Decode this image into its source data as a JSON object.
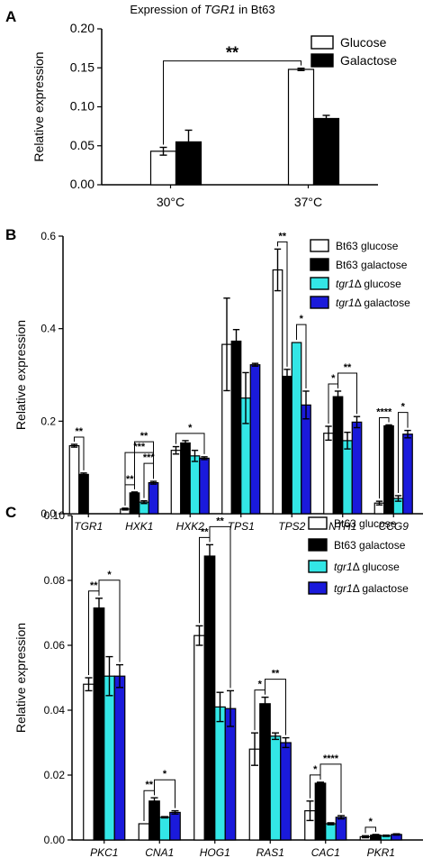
{
  "colors": {
    "glucose": "#ffffff",
    "galactose": "#000000",
    "tgr1_glucose": "#33e6e6",
    "tgr1_galactose": "#1a1adb"
  },
  "chart_data": [
    {
      "panel": "A",
      "type": "bar",
      "title": "Expression of TGR1 in Bt63",
      "title_parts": [
        "Expression of ",
        "TGR1",
        " in Bt63"
      ],
      "ylabel": "Relative expression",
      "ylim": [
        0,
        0.2
      ],
      "yticks": [
        "0.00",
        "0.05",
        "0.10",
        "0.15",
        "0.20"
      ],
      "categories": [
        "30°C",
        "37°C"
      ],
      "legend_position": "top-right",
      "series": [
        {
          "name": "Glucose",
          "color_key": "glucose",
          "values": [
            0.043,
            0.148
          ],
          "errors": [
            0.005,
            0.0015
          ]
        },
        {
          "name": "Galactose",
          "color_key": "galactose",
          "values": [
            0.055,
            0.085
          ],
          "errors": [
            0.015,
            0.004
          ]
        }
      ],
      "significance": [
        {
          "label": "**",
          "from": [
            0,
            0
          ],
          "to": [
            1,
            0
          ]
        }
      ]
    },
    {
      "panel": "B",
      "type": "bar",
      "ylabel": "Relative expression",
      "ylim": [
        0,
        0.6
      ],
      "yticks": [
        "0.0",
        "0.2",
        "0.4",
        "0.6"
      ],
      "categories": [
        "TGR1",
        "HXK1",
        "HXK2",
        "TPS1",
        "TPS2",
        "NTH1",
        "CCG9"
      ],
      "legend_position": "top-right",
      "series": [
        {
          "name": "Bt63 glucose",
          "color_key": "glucose",
          "values": [
            0.147,
            0.01,
            0.137,
            0.366,
            0.527,
            0.174,
            0.023
          ],
          "errors": [
            0.003,
            0.002,
            0.008,
            0.1,
            0.045,
            0.015,
            0.004
          ]
        },
        {
          "name": "Bt63 galactose",
          "color_key": "galactose",
          "values": [
            0.085,
            0.045,
            0.153,
            0.373,
            0.297,
            0.253,
            0.19
          ],
          "errors": [
            0.003,
            0.002,
            0.005,
            0.025,
            0.015,
            0.012,
            0.002
          ]
        },
        {
          "name": "tgr1Δ glucose",
          "name_parts": [
            "tgr1",
            "Δ glucose"
          ],
          "color_key": "tgr1_glucose",
          "values": [
            null,
            0.025,
            0.125,
            0.25,
            0.37,
            0.158,
            0.033
          ],
          "errors": [
            0,
            0.003,
            0.012,
            0.055,
            0.0,
            0.018,
            0.006
          ]
        },
        {
          "name": "tgr1Δ galactose",
          "name_parts": [
            "tgr1",
            "Δ galactose"
          ],
          "color_key": "tgr1_galactose",
          "values": [
            null,
            0.067,
            0.12,
            0.322,
            0.235,
            0.198,
            0.172
          ],
          "errors": [
            0,
            0.003,
            0.003,
            0.003,
            0.03,
            0.012,
            0.008
          ]
        }
      ],
      "significance": [
        {
          "label": "**",
          "from": [
            0,
            0
          ],
          "to": [
            0,
            1
          ]
        },
        {
          "label": "**",
          "from": [
            1,
            0
          ],
          "to": [
            1,
            1
          ]
        },
        {
          "label": "***",
          "from": [
            1,
            2
          ],
          "to": [
            1,
            3
          ]
        },
        {
          "label": "***",
          "from": [
            1,
            0
          ],
          "to": [
            1,
            3
          ]
        },
        {
          "label": "**",
          "from": [
            1,
            1
          ],
          "to": [
            1,
            3
          ]
        },
        {
          "label": "*",
          "from": [
            2,
            0
          ],
          "to": [
            2,
            3
          ]
        },
        {
          "label": "**",
          "from": [
            4,
            0
          ],
          "to": [
            4,
            1
          ]
        },
        {
          "label": "*",
          "from": [
            4,
            2
          ],
          "to": [
            4,
            3
          ]
        },
        {
          "label": "*",
          "from": [
            5,
            0
          ],
          "to": [
            5,
            1
          ]
        },
        {
          "label": "**",
          "from": [
            5,
            1
          ],
          "to": [
            5,
            3
          ]
        },
        {
          "label": "****",
          "from": [
            6,
            0
          ],
          "to": [
            6,
            1
          ]
        },
        {
          "label": "*",
          "from": [
            6,
            2
          ],
          "to": [
            6,
            3
          ]
        }
      ]
    },
    {
      "panel": "C",
      "type": "bar",
      "ylabel": "Relative expression",
      "ylim": [
        0,
        0.1
      ],
      "yticks": [
        "0.00",
        "0.02",
        "0.04",
        "0.06",
        "0.08",
        "0.10"
      ],
      "categories": [
        "PKC1",
        "CNA1",
        "HOG1",
        "RAS1",
        "CAC1",
        "PKR1"
      ],
      "legend_position": "top-right",
      "series": [
        {
          "name": "Bt63 glucose",
          "color_key": "glucose",
          "values": [
            0.048,
            0.005,
            0.063,
            0.028,
            0.009,
            0.001
          ],
          "errors": [
            0.002,
            0.0,
            0.003,
            0.005,
            0.003,
            0.0003
          ]
        },
        {
          "name": "Bt63 galactose",
          "color_key": "galactose",
          "values": [
            0.0715,
            0.012,
            0.0875,
            0.042,
            0.0175,
            0.0015
          ],
          "errors": [
            0.003,
            0.001,
            0.0035,
            0.002,
            0.0003,
            0.0002
          ]
        },
        {
          "name": "tgr1Δ glucose",
          "name_parts": [
            "tgr1",
            "Δ glucose"
          ],
          "color_key": "tgr1_glucose",
          "values": [
            0.0505,
            0.007,
            0.041,
            0.032,
            0.005,
            0.0013
          ],
          "errors": [
            0.006,
            0.0002,
            0.0045,
            0.001,
            0.0003,
            0.0002
          ]
        },
        {
          "name": "tgr1Δ galactose",
          "name_parts": [
            "tgr1",
            "Δ galactose"
          ],
          "color_key": "tgr1_galactose",
          "values": [
            0.0505,
            0.0085,
            0.0405,
            0.03,
            0.007,
            0.0017
          ],
          "errors": [
            0.0035,
            0.0005,
            0.0055,
            0.0015,
            0.0005,
            0.0002
          ]
        }
      ],
      "significance": [
        {
          "label": "**",
          "from": [
            0,
            0
          ],
          "to": [
            0,
            1
          ]
        },
        {
          "label": "*",
          "from": [
            0,
            1
          ],
          "to": [
            0,
            3
          ]
        },
        {
          "label": "**",
          "from": [
            1,
            0
          ],
          "to": [
            1,
            1
          ]
        },
        {
          "label": "*",
          "from": [
            1,
            1
          ],
          "to": [
            1,
            3
          ]
        },
        {
          "label": "**",
          "from": [
            2,
            0
          ],
          "to": [
            2,
            1
          ]
        },
        {
          "label": "**",
          "from": [
            2,
            1
          ],
          "to": [
            2,
            3
          ]
        },
        {
          "label": "*",
          "from": [
            3,
            0
          ],
          "to": [
            3,
            1
          ]
        },
        {
          "label": "**",
          "from": [
            3,
            1
          ],
          "to": [
            3,
            3
          ]
        },
        {
          "label": "*",
          "from": [
            4,
            0
          ],
          "to": [
            4,
            1
          ]
        },
        {
          "label": "****",
          "from": [
            4,
            1
          ],
          "to": [
            4,
            3
          ]
        },
        {
          "label": "*",
          "from": [
            5,
            0
          ],
          "to": [
            5,
            1
          ]
        }
      ]
    }
  ]
}
